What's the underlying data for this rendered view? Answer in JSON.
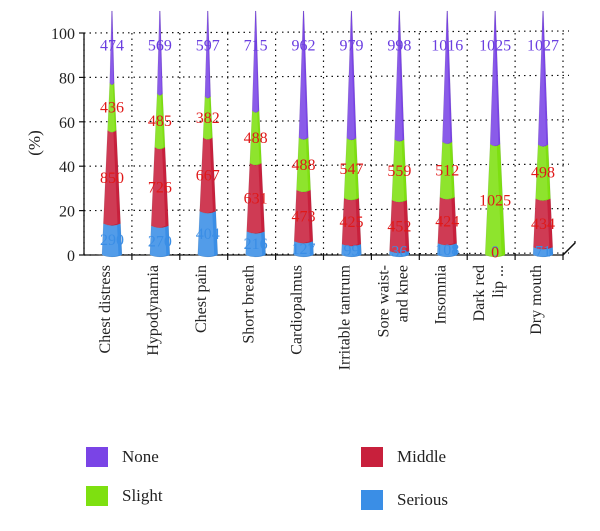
{
  "chart_data": {
    "type": "bar",
    "stacked": true,
    "normalized_percent": true,
    "ylabel": "(%)",
    "ylim": [
      0,
      100
    ],
    "yticks": [
      0,
      20,
      40,
      60,
      80,
      100
    ],
    "grid": true,
    "legend_position": "bottom",
    "categories": [
      "Chest distress",
      "Hypodynamia",
      "Chest pain",
      "Short breath",
      "Cardiopalmus",
      "Irritable tantrum",
      "Sore waist-\nand knee",
      "Insomnia",
      "Dark red\nlip ...",
      "Dry mouth"
    ],
    "series": [
      {
        "name": "Serious",
        "color": "#3a8ee6",
        "label_color": "#3a8ee6",
        "values": [
          14.2,
          13.2,
          19.7,
          10.6,
          6.2,
          4.9,
          1.8,
          5.3,
          0,
          3.5
        ],
        "labels": [
          "290",
          "270",
          "404",
          "216",
          "127",
          "99",
          "36",
          "108",
          "0",
          "71"
        ]
      },
      {
        "name": "Middle",
        "color": "#c8203c",
        "label_color": "#e01818",
        "values": [
          42,
          35.4,
          33.2,
          30.8,
          23.1,
          20.7,
          22.9,
          20.7,
          0,
          21.9
        ],
        "labels": [
          "850",
          "726",
          "667",
          "631",
          "473",
          "425",
          "452",
          "424",
          "0",
          "434"
        ]
      },
      {
        "name": "Slight",
        "color": "#7ee010",
        "label_color": "#e01818",
        "values": [
          21.4,
          24.2,
          18.6,
          23.7,
          23.6,
          27.1,
          27.4,
          25.0,
          50.0,
          24.4
        ],
        "labels": [
          "436",
          "485",
          "382",
          "488",
          "488",
          "547",
          "559",
          "512",
          "1025",
          "498"
        ]
      },
      {
        "name": "None",
        "color": "#7a44e6",
        "label_color": "#6a3ee0",
        "values": [
          22.4,
          27.2,
          28.5,
          34.9,
          47.1,
          47.3,
          47.9,
          49.0,
          50.0,
          50.2
        ],
        "labels": [
          "474",
          "569",
          "597",
          "715",
          "962",
          "979",
          "998",
          "1016",
          "1025",
          "1027"
        ]
      }
    ],
    "colors": {
      "none": "#7a44e6",
      "slight": "#7ee010",
      "middle": "#c8203c",
      "serious": "#3a8ee6"
    }
  },
  "legend": [
    {
      "name": "None",
      "color": "#7a44e6"
    },
    {
      "name": "Middle",
      "color": "#c8203c"
    },
    {
      "name": "Slight",
      "color": "#7ee010"
    },
    {
      "name": "Serious",
      "color": "#3a8ee6"
    }
  ]
}
